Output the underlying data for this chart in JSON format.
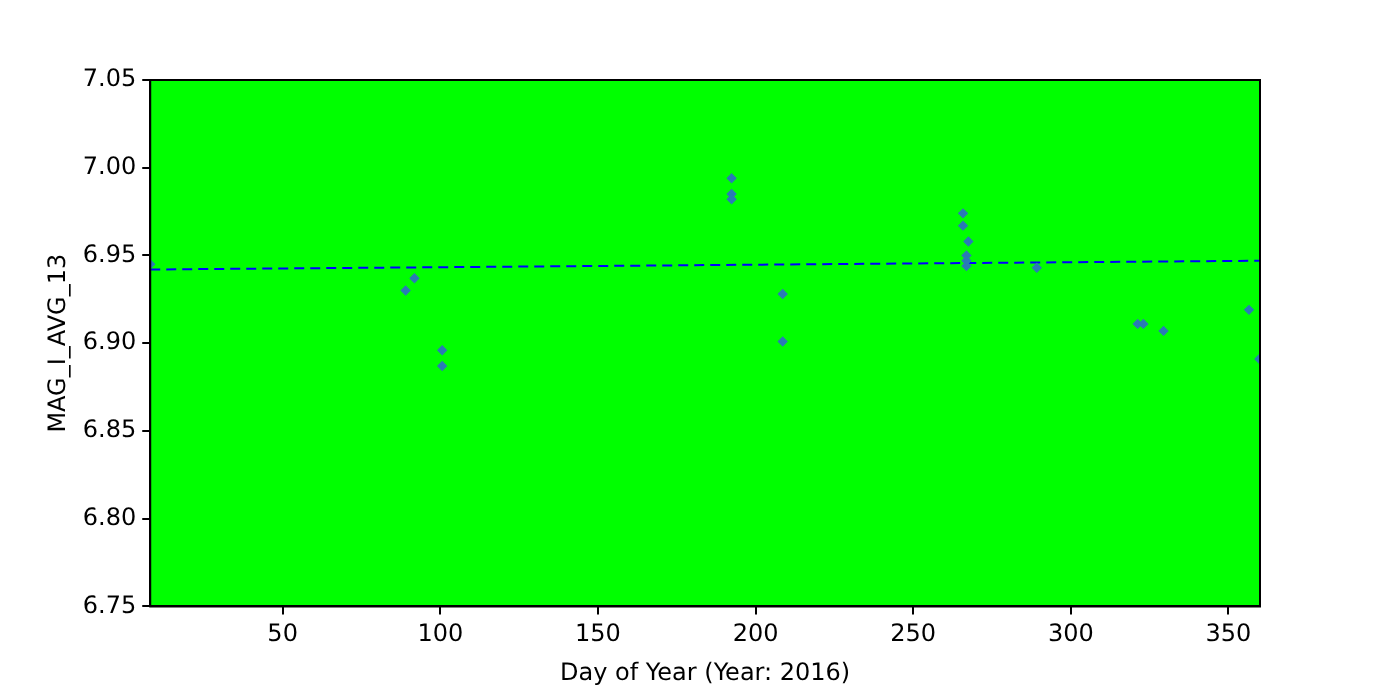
{
  "chart_data": {
    "type": "scatter",
    "xlabel": "Day of Year (Year: 2016)",
    "ylabel": "MAG_I_AVG_13",
    "xlim": [
      8,
      360
    ],
    "xticks": [
      50,
      100,
      150,
      200,
      250,
      300,
      350
    ],
    "ylim": [
      6.75,
      7.05
    ],
    "yticks": [
      {
        "value": 6.75,
        "label": "6.75"
      },
      {
        "value": 6.8,
        "label": "6.80"
      },
      {
        "value": 6.85,
        "label": "6.85"
      },
      {
        "value": 6.9,
        "label": "6.90"
      },
      {
        "value": 6.95,
        "label": "6.95"
      },
      {
        "value": 7.0,
        "label": "7.00"
      },
      {
        "value": 7.05,
        "label": "7.05"
      }
    ],
    "grid": false,
    "legend": false,
    "marker": "diamond",
    "series": [
      {
        "type": "scatter",
        "color": "#2a7ab5",
        "x": [
          8,
          89,
          91.8,
          100.6,
          100.6,
          192.4,
          192.4,
          192.4,
          208.6,
          208.6,
          265.8,
          265.8,
          266.9,
          267.5,
          266.9,
          266.9,
          266.9,
          289.2,
          321.2,
          323,
          329.4,
          356.5,
          359.8
        ],
        "values": [
          6.945,
          6.93,
          6.937,
          6.896,
          6.887,
          6.994,
          6.985,
          6.982,
          6.928,
          6.901,
          6.974,
          6.967,
          null,
          6.958,
          6.95,
          6.947,
          6.944,
          6.943,
          6.911,
          6.911,
          6.907,
          6.919,
          6.891
        ]
      },
      {
        "type": "line",
        "color": "#0000ff",
        "line_style": "dashed",
        "marker": "none",
        "x": [
          8,
          360
        ],
        "values": [
          6.942,
          6.947
        ]
      }
    ]
  }
}
